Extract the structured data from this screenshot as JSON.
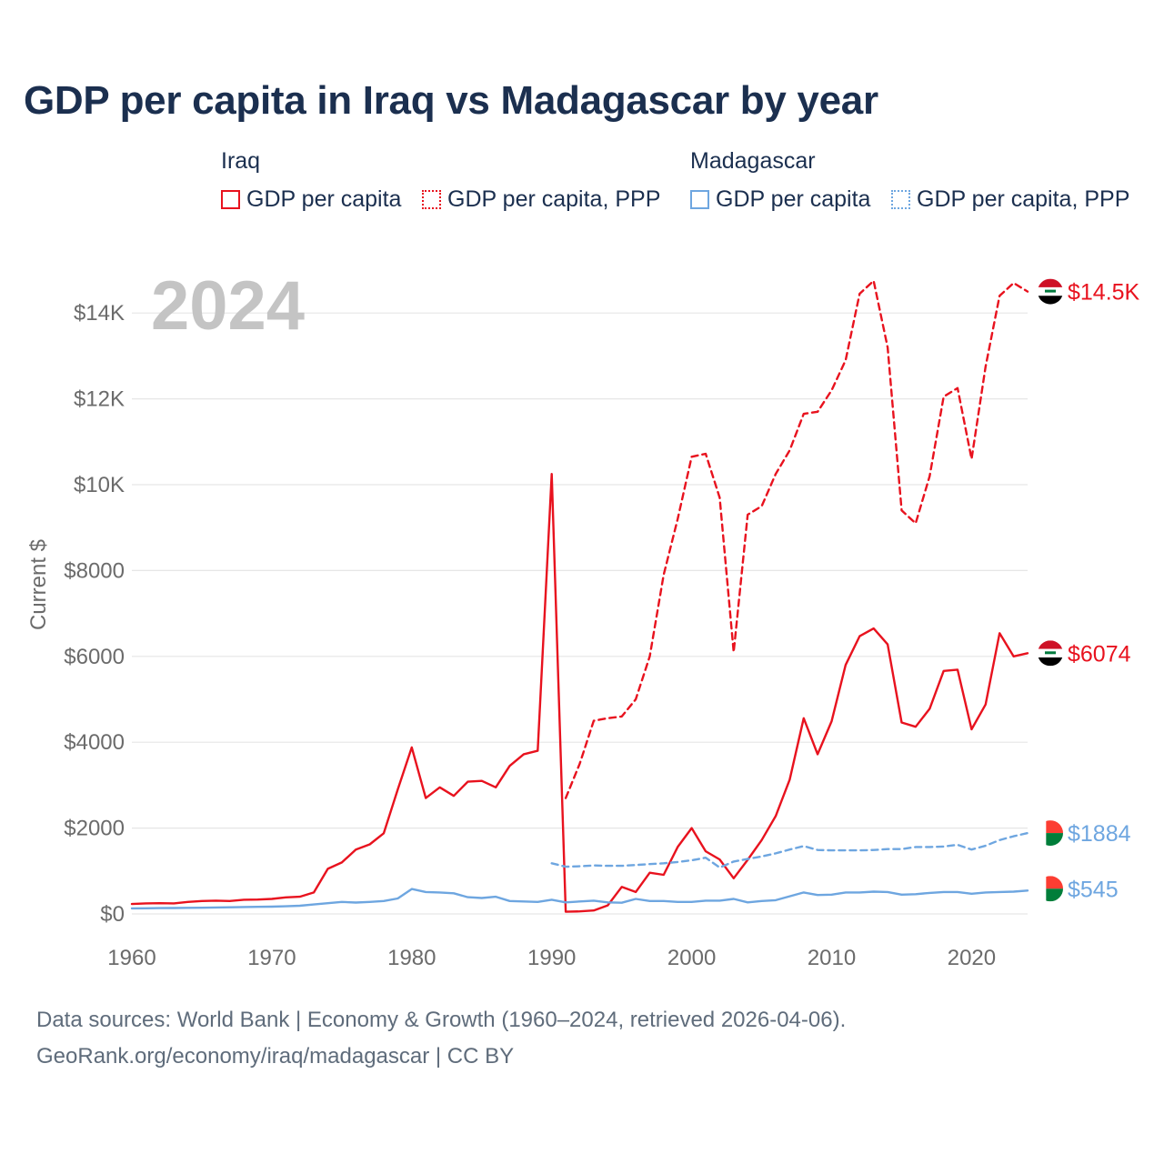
{
  "chart_data": {
    "type": "line",
    "title": "GDP per capita in Iraq vs Madagascar by year",
    "year_watermark": "2024",
    "xlabel": "",
    "ylabel": "Current $",
    "xlim": [
      1960,
      2024
    ],
    "ylim": [
      0,
      15000
    ],
    "x_ticks": [
      1960,
      1970,
      1980,
      1990,
      2000,
      2010,
      2020
    ],
    "x_tick_labels": [
      "1960",
      "1970",
      "1980",
      "1990",
      "2000",
      "2010",
      "2020"
    ],
    "y_ticks": [
      0,
      2000,
      4000,
      6000,
      8000,
      10000,
      12000,
      14000
    ],
    "y_tick_labels": [
      "$0",
      "$2000",
      "$4000",
      "$6000",
      "$8000",
      "$10K",
      "$12K",
      "$14K"
    ],
    "grid": true,
    "legend": {
      "groups": [
        {
          "country": "Iraq",
          "items": [
            "GDP per capita",
            "GDP per capita, PPP"
          ]
        },
        {
          "country": "Madagascar",
          "items": [
            "GDP per capita",
            "GDP per capita, PPP"
          ]
        }
      ]
    },
    "series": [
      {
        "name": "Iraq GDP per capita",
        "country": "Iraq",
        "metric": "GDP per capita",
        "style": "solid",
        "color": "#e8121e",
        "end_label": "$6074",
        "x": [
          1960,
          1961,
          1962,
          1963,
          1964,
          1965,
          1966,
          1967,
          1968,
          1969,
          1970,
          1971,
          1972,
          1973,
          1974,
          1975,
          1976,
          1977,
          1978,
          1979,
          1980,
          1981,
          1982,
          1983,
          1984,
          1985,
          1986,
          1987,
          1988,
          1989,
          1990,
          1991,
          1992,
          1993,
          1994,
          1995,
          1996,
          1997,
          1998,
          1999,
          2000,
          2001,
          2002,
          2003,
          2004,
          2005,
          2006,
          2007,
          2008,
          2009,
          2010,
          2011,
          2012,
          2013,
          2014,
          2015,
          2016,
          2017,
          2018,
          2019,
          2020,
          2021,
          2022,
          2023,
          2024
        ],
        "values": [
          230,
          245,
          250,
          245,
          280,
          300,
          310,
          300,
          330,
          335,
          350,
          385,
          400,
          500,
          1050,
          1200,
          1500,
          1620,
          1880,
          2900,
          3880,
          2700,
          2950,
          2750,
          3080,
          3100,
          2950,
          3450,
          3720,
          3800,
          10250,
          50,
          60,
          80,
          200,
          630,
          510,
          960,
          910,
          1560,
          2000,
          1460,
          1270,
          830,
          1260,
          1720,
          2280,
          3130,
          4560,
          3720,
          4490,
          5800,
          6470,
          6650,
          6280,
          4460,
          4360,
          4780,
          5660,
          5690,
          4300,
          4880,
          6540,
          6000,
          6074
        ]
      },
      {
        "name": "Iraq GDP per capita, PPP",
        "country": "Iraq",
        "metric": "GDP per capita, PPP",
        "style": "dashed",
        "color": "#e8121e",
        "end_label": "$14.5K",
        "x": [
          1991,
          1992,
          1993,
          1994,
          1995,
          1996,
          1997,
          1998,
          1999,
          2000,
          2001,
          2002,
          2003,
          2004,
          2005,
          2006,
          2007,
          2008,
          2009,
          2010,
          2011,
          2012,
          2013,
          2014,
          2015,
          2016,
          2017,
          2018,
          2019,
          2020,
          2021,
          2022,
          2023,
          2024
        ],
        "values": [
          2700,
          3500,
          4500,
          4560,
          4600,
          5000,
          6000,
          7900,
          9200,
          10650,
          10720,
          9700,
          6100,
          9300,
          9500,
          10250,
          10800,
          11650,
          11700,
          12200,
          12900,
          14450,
          14750,
          13200,
          9400,
          9100,
          10200,
          12050,
          12250,
          10600,
          12750,
          14400,
          14700,
          14500
        ]
      },
      {
        "name": "Madagascar GDP per capita",
        "country": "Madagascar",
        "metric": "GDP per capita",
        "style": "solid",
        "color": "#6ea6e0",
        "end_label": "$545",
        "x": [
          1960,
          1961,
          1962,
          1963,
          1964,
          1965,
          1966,
          1967,
          1968,
          1969,
          1970,
          1971,
          1972,
          1973,
          1974,
          1975,
          1976,
          1977,
          1978,
          1979,
          1980,
          1981,
          1982,
          1983,
          1984,
          1985,
          1986,
          1987,
          1988,
          1989,
          1990,
          1991,
          1992,
          1993,
          1994,
          1995,
          1996,
          1997,
          1998,
          1999,
          2000,
          2001,
          2002,
          2003,
          2004,
          2005,
          2006,
          2007,
          2008,
          2009,
          2010,
          2011,
          2012,
          2013,
          2014,
          2015,
          2016,
          2017,
          2018,
          2019,
          2020,
          2021,
          2022,
          2023,
          2024
        ],
        "values": [
          130,
          132,
          135,
          138,
          142,
          145,
          150,
          155,
          160,
          165,
          170,
          178,
          190,
          220,
          250,
          280,
          265,
          280,
          300,
          360,
          580,
          510,
          500,
          480,
          390,
          370,
          400,
          300,
          290,
          280,
          330,
          270,
          290,
          310,
          270,
          260,
          350,
          300,
          300,
          280,
          280,
          310,
          310,
          350,
          270,
          300,
          320,
          410,
          500,
          440,
          450,
          500,
          500,
          520,
          510,
          450,
          460,
          490,
          510,
          510,
          470,
          500,
          510,
          520,
          545
        ]
      },
      {
        "name": "Madagascar GDP per capita, PPP",
        "country": "Madagascar",
        "metric": "GDP per capita, PPP",
        "style": "dashed",
        "color": "#6ea6e0",
        "end_label": "$1884",
        "x": [
          1990,
          1991,
          1992,
          1993,
          1994,
          1995,
          1996,
          1997,
          1998,
          1999,
          2000,
          2001,
          2002,
          2003,
          2004,
          2005,
          2006,
          2007,
          2008,
          2009,
          2010,
          2011,
          2012,
          2013,
          2014,
          2015,
          2016,
          2017,
          2018,
          2019,
          2020,
          2021,
          2022,
          2023,
          2024
        ],
        "values": [
          1180,
          1100,
          1110,
          1130,
          1120,
          1120,
          1140,
          1160,
          1180,
          1210,
          1250,
          1310,
          1080,
          1220,
          1280,
          1340,
          1410,
          1500,
          1580,
          1490,
          1480,
          1480,
          1480,
          1490,
          1510,
          1510,
          1560,
          1560,
          1570,
          1610,
          1500,
          1590,
          1720,
          1810,
          1884
        ]
      }
    ]
  },
  "legend_labels": {
    "iraq": "Iraq",
    "madagascar": "Madagascar",
    "gdp": "GDP per capita",
    "gdp_ppp": "GDP per capita, PPP"
  },
  "footer": {
    "line1": "Data sources: World Bank | Economy & Growth (1960–2024, retrieved 2026-04-06).",
    "line2": "GeoRank.org/economy/iraq/madagascar | CC BY"
  },
  "flags": {
    "iraq": {
      "colors": [
        "#ce1126",
        "#ffffff",
        "#000000",
        "#007a3d"
      ],
      "icon": "iraq-flag-icon"
    },
    "madagascar": {
      "colors": [
        "#ffffff",
        "#fc3d32",
        "#007e3a"
      ],
      "icon": "madagascar-flag-icon"
    }
  },
  "colors": {
    "title": "#1b2f4f",
    "axis_text": "#6b6b6b",
    "grid": "#e6e6e6",
    "watermark": "#c4c4c4"
  }
}
